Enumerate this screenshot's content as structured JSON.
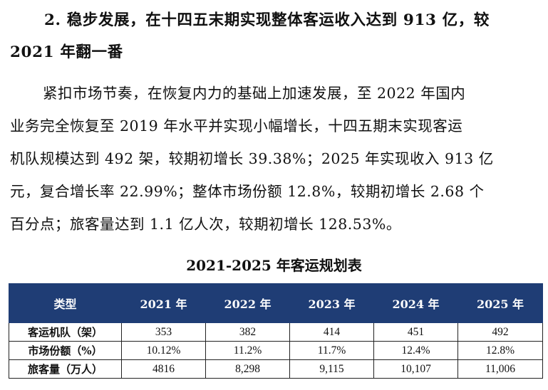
{
  "heading": {
    "line1": "2. 稳步发展，在十四五末期实现整体客运收入达到 913 亿，较",
    "line2": "2021 年翻一番"
  },
  "paragraph": {
    "lines": [
      "紧扣市场节奏，在恢复内力的基础上加速发展，至 2022 年国内",
      "业务完全恢复至 2019 年水平并实现小幅增长，十四五期末实现客运",
      "机队规模达到 492 架，较期初增长 39.38%；2025 年实现收入 913 亿",
      "元，复合增长率 22.99%；整体市场份额 12.8%，较期初增长 2.68 个",
      "百分点；旅客量达到 1.1 亿人次，较期初增长 128.53%。"
    ]
  },
  "table": {
    "title": "2021-2025 年客运规划表",
    "header_color": "#1f3d75",
    "headers": [
      "类型",
      "2021 年",
      "2022 年",
      "2023 年",
      "2024 年",
      "2025 年"
    ],
    "rows": [
      [
        "客运机队（架）",
        "353",
        "382",
        "414",
        "451",
        "492"
      ],
      [
        "市场份额（%）",
        "10.12%",
        "11.2%",
        "11.7%",
        "12.4%",
        "12.8%"
      ],
      [
        "旅客量（万人）",
        "4816",
        "8,298",
        "9,115",
        "10,107",
        "11,006"
      ]
    ]
  }
}
